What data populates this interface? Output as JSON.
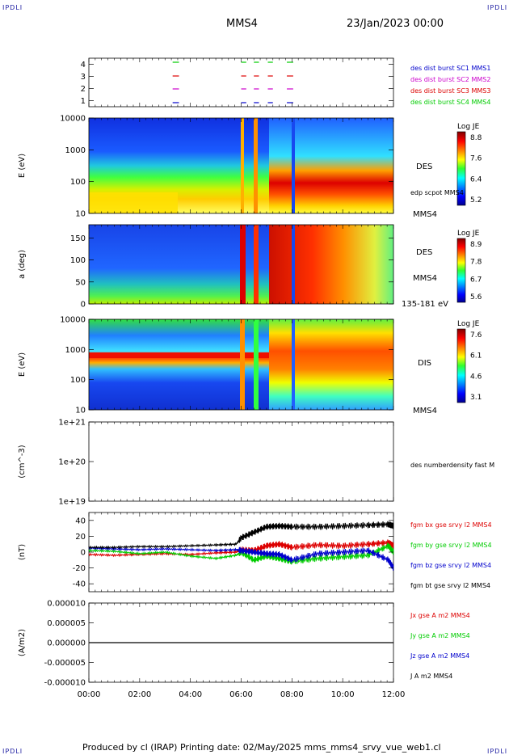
{
  "header": {
    "corner_label": "IPDLI",
    "spacecraft": "MMS4",
    "date_time": "23/Jan/2023 00:00"
  },
  "footer": {
    "text": "Produced by cl (IRAP)   Printing date: 02/May/2025   mms_mms4_srvy_vue_web1.cl"
  },
  "colors": {
    "mms1": "#0000cc",
    "mms2": "#cc00cc",
    "mms3": "#dd0000",
    "mms4": "#00cc00",
    "bt": "#000000"
  },
  "chart_data": [
    {
      "type": "line",
      "panel": "burst-intervals",
      "x_ticks": [
        "00:00",
        "02:00",
        "04:00",
        "06:00",
        "08:00",
        "10:00",
        "12:00"
      ],
      "xlim_hours": [
        0,
        12
      ],
      "yticks": [
        "1",
        "2",
        "3",
        "4"
      ],
      "ylim": [
        0.5,
        4.5
      ],
      "legend": [
        {
          "text": "des dist burst SC1 MMS1",
          "color": "#0000cc"
        },
        {
          "text": "des dist burst SC2 MMS2",
          "color": "#cc00cc"
        },
        {
          "text": "des dist burst SC3 MMS3",
          "color": "#dd0000"
        },
        {
          "text": "des dist burst SC4 MMS4",
          "color": "#00cc00"
        }
      ],
      "intervals_hours": [
        [
          3.3,
          3.6
        ],
        [
          6.0,
          6.2
        ],
        [
          6.5,
          6.7
        ],
        [
          7.05,
          7.25
        ],
        [
          7.8,
          8.05
        ]
      ]
    },
    {
      "type": "heatmap",
      "panel": "des-energy",
      "ylabel": "E (eV)",
      "yscale": "log",
      "yticks": [
        "10",
        "100",
        "1000",
        "10000"
      ],
      "right_labels": [
        "DES",
        "edp scpot MMS4",
        "MMS4"
      ],
      "colorbar": {
        "title": "Log JE",
        "ticks": [
          "8.8",
          "7.6",
          "6.4",
          "5.2"
        ]
      }
    },
    {
      "type": "heatmap",
      "panel": "des-pitch-angle",
      "ylabel": "a (deg)",
      "yticks": [
        "0",
        "50",
        "100",
        "150"
      ],
      "right_labels": [
        "DES",
        "MMS4",
        "135-181 eV"
      ],
      "colorbar": {
        "title": "Log JE",
        "ticks": [
          "8.9",
          "7.8",
          "6.7",
          "5.6"
        ]
      }
    },
    {
      "type": "heatmap",
      "panel": "dis-energy",
      "ylabel": "E (eV)",
      "yscale": "log",
      "yticks": [
        "10",
        "100",
        "1000",
        "10000"
      ],
      "right_labels": [
        "DIS",
        "MMS4"
      ],
      "colorbar": {
        "title": "Log JE",
        "ticks": [
          "7.6",
          "6.1",
          "4.6",
          "3.1"
        ]
      }
    },
    {
      "type": "line",
      "panel": "number-density",
      "ylabel": "(cm^-3)",
      "yscale": "log",
      "yticks": [
        "1e+19",
        "1e+20",
        "1e+21"
      ],
      "legend": [
        {
          "text": "des numberdensity fast M",
          "color": "#000000"
        }
      ],
      "series": []
    },
    {
      "type": "line",
      "panel": "magnetic-field",
      "ylabel": "(nT)",
      "yticks": [
        "-40",
        "-20",
        "0",
        "20",
        "40"
      ],
      "ylim": [
        -50,
        50
      ],
      "legend": [
        {
          "text": "fgm bx gse srvy l2 MMS4",
          "color": "#dd0000"
        },
        {
          "text": "fgm by gse srvy l2 MMS4",
          "color": "#00cc00"
        },
        {
          "text": "fgm bz gse srvy l2 MMS4",
          "color": "#0000cc"
        },
        {
          "text": "fgm bt gse srvy l2 MMS4",
          "color": "#000000"
        }
      ],
      "series": [
        {
          "name": "bx",
          "color": "#dd0000",
          "x": [
            0,
            1,
            2,
            3,
            4,
            5,
            5.8,
            6.0,
            6.5,
            7.0,
            7.5,
            8.0,
            9,
            10,
            11,
            11.8,
            12
          ],
          "y": [
            -3,
            -4,
            -3,
            -2,
            -3,
            -1,
            0,
            3,
            2,
            8,
            10,
            6,
            9,
            8,
            10,
            12,
            8
          ]
        },
        {
          "name": "by",
          "color": "#00cc00",
          "x": [
            0,
            1,
            2,
            3,
            4,
            5,
            5.8,
            6.0,
            6.5,
            7.0,
            7.5,
            8.0,
            9,
            10,
            11,
            11.8,
            12
          ],
          "y": [
            2,
            1,
            -2,
            0,
            -5,
            -8,
            -4,
            0,
            -10,
            -5,
            -8,
            -12,
            -8,
            -6,
            -4,
            8,
            0
          ]
        },
        {
          "name": "bz",
          "color": "#0000cc",
          "x": [
            0,
            1,
            2,
            3,
            4,
            5,
            5.8,
            6.0,
            6.5,
            7.0,
            7.5,
            8.0,
            9,
            10,
            11,
            11.8,
            12
          ],
          "y": [
            5,
            4,
            3,
            4,
            3,
            2,
            3,
            2,
            0,
            -2,
            -3,
            -10,
            -2,
            0,
            2,
            -10,
            -20
          ]
        },
        {
          "name": "bt",
          "color": "#000000",
          "x": [
            0,
            1,
            2,
            3,
            4,
            5,
            5.8,
            6.0,
            6.5,
            7.0,
            7.5,
            8.0,
            9,
            10,
            11,
            11.8,
            12
          ],
          "y": [
            6,
            6,
            7,
            7,
            8,
            9,
            10,
            18,
            25,
            32,
            33,
            32,
            32,
            33,
            34,
            35,
            33
          ]
        }
      ]
    },
    {
      "type": "line",
      "panel": "current-density",
      "ylabel": "(A/m2)",
      "yticks": [
        "-0.000010",
        "-0.000005",
        "0.000000",
        "0.000005",
        "0.000010"
      ],
      "ylim": [
        -1e-05,
        1e-05
      ],
      "legend": [
        {
          "text": "Jx gse A m2 MMS4",
          "color": "#dd0000"
        },
        {
          "text": "Jy gse A m2 MMS4",
          "color": "#00cc00"
        },
        {
          "text": "Jz gse A m2 MMS4",
          "color": "#0000cc"
        },
        {
          "text": "J A m2 MMS4",
          "color": "#000000"
        }
      ],
      "series": [
        {
          "name": "J",
          "color": "#000000",
          "x": [
            0,
            12
          ],
          "y": [
            0,
            0
          ]
        }
      ]
    }
  ]
}
